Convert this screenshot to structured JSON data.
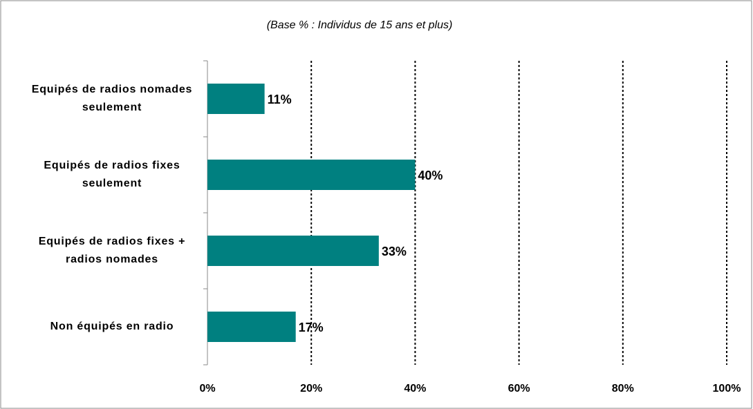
{
  "chart_data": {
    "type": "bar",
    "orientation": "horizontal",
    "subtitle": "(Base % : Individus de 15 ans et plus)",
    "categories": [
      "Equipés de radios nomades seulement",
      "Equipés de radios fixes seulement",
      "Equipés de radios fixes + radios nomades",
      "Non équipés en radio"
    ],
    "values": [
      11,
      40,
      33,
      17
    ],
    "value_labels": [
      "11%",
      "40%",
      "33%",
      "17%"
    ],
    "color": "#008080",
    "xlim": [
      0,
      100
    ],
    "xticks": [
      {
        "value": 0,
        "label": "0%"
      },
      {
        "value": 20,
        "label": "20%"
      },
      {
        "value": 40,
        "label": "40%"
      },
      {
        "value": 60,
        "label": "60%"
      },
      {
        "value": 80,
        "label": "80%"
      },
      {
        "value": 100,
        "label": "100%"
      }
    ],
    "grid": true
  }
}
